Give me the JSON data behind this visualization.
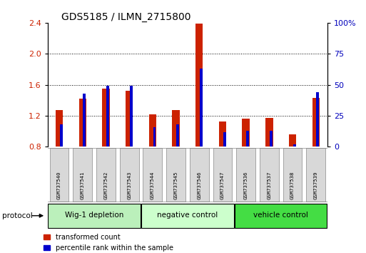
{
  "title": "GDS5185 / ILMN_2715800",
  "samples": [
    "GSM737540",
    "GSM737541",
    "GSM737542",
    "GSM737543",
    "GSM737544",
    "GSM737545",
    "GSM737546",
    "GSM737547",
    "GSM737536",
    "GSM737537",
    "GSM737538",
    "GSM737539"
  ],
  "red_values": [
    1.27,
    1.42,
    1.55,
    1.52,
    1.22,
    1.27,
    2.39,
    1.13,
    1.16,
    1.17,
    0.96,
    1.43
  ],
  "blue_values_pct": [
    18,
    43,
    49,
    49,
    16,
    18,
    63,
    12,
    13,
    13,
    2,
    44
  ],
  "groups": [
    {
      "label": "Wig-1 depletion",
      "start": 0,
      "end": 4,
      "color": "#bbf0bb"
    },
    {
      "label": "negative control",
      "start": 4,
      "end": 8,
      "color": "#ccffcc"
    },
    {
      "label": "vehicle control",
      "start": 8,
      "end": 12,
      "color": "#44dd44"
    }
  ],
  "ylim_left": [
    0.8,
    2.4
  ],
  "ylim_right": [
    0,
    100
  ],
  "yticks_left": [
    0.8,
    1.2,
    1.6,
    2.0,
    2.4
  ],
  "yticks_right": [
    0,
    25,
    50,
    75,
    100
  ],
  "red_color": "#cc2200",
  "blue_color": "#0000cc",
  "background_color": "#ffffff",
  "label_color_left": "#cc2200",
  "label_color_right": "#0000bb"
}
